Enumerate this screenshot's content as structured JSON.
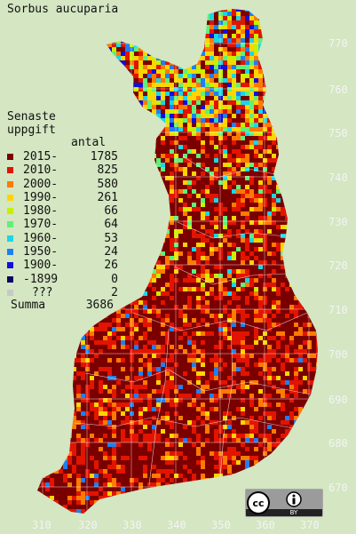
{
  "species": "Sorbus aucuparia",
  "legend_heading_line1": "Senaste",
  "legend_heading_line2": "uppgift",
  "count_header": "antal",
  "legend": [
    {
      "label": "2015-",
      "count": "1785",
      "color": "#7a0000"
    },
    {
      "label": "2010-",
      "count": "825",
      "color": "#e21400"
    },
    {
      "label": "2000-",
      "count": "580",
      "color": "#ff7a00"
    },
    {
      "label": "1990-",
      "count": "261",
      "color": "#ffd400"
    },
    {
      "label": "1980-",
      "count": "66",
      "color": "#c8f000"
    },
    {
      "label": "1970-",
      "count": "64",
      "color": "#5ff07a"
    },
    {
      "label": "1960-",
      "count": "53",
      "color": "#19d6e8"
    },
    {
      "label": "1950-",
      "count": "24",
      "color": "#1f7ff0"
    },
    {
      "label": "1900-",
      "count": "26",
      "color": "#1010d8"
    },
    {
      "label": "-1899",
      "count": "0",
      "color": "#080860"
    },
    {
      "label": "???",
      "count": "2",
      "color": "#c8c8c8"
    }
  ],
  "summa_label": "Summa",
  "summa_count": "3686",
  "y_ticks": [
    "770",
    "760",
    "750",
    "740",
    "730",
    "720",
    "710",
    "700",
    "690",
    "680",
    "670"
  ],
  "x_ticks": [
    "310",
    "320",
    "330",
    "340",
    "350",
    "360",
    "370"
  ],
  "license": {
    "cc": "cc",
    "by": "BY"
  },
  "map_colors": {
    "background": "#d4e6c2",
    "gridline": "#ffffff",
    "border": "#ffffff"
  }
}
